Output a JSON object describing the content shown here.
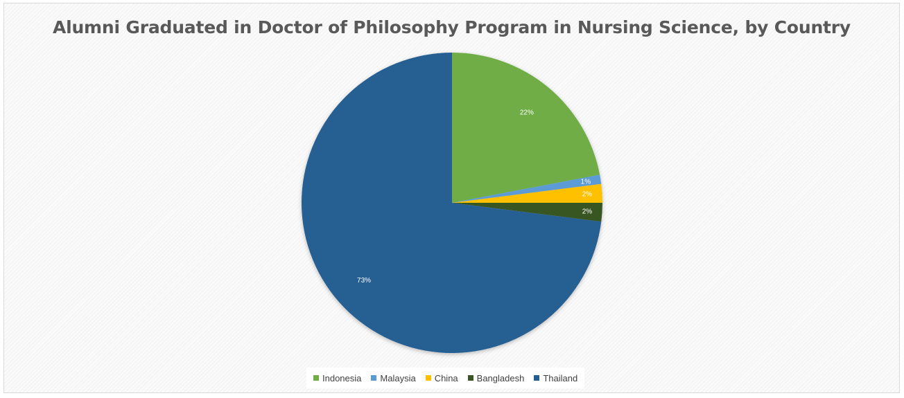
{
  "chart_data": {
    "type": "pie",
    "title": "Alumni Graduated in Doctor of Philosophy Program in Nursing Science, by Country",
    "categories": [
      "Indonesia",
      "Malaysia",
      "China",
      "Bangladesh",
      "Thailand"
    ],
    "values": [
      22,
      1,
      2,
      2,
      73
    ],
    "labels": [
      "22%",
      "1%",
      "2%",
      "2%",
      "73%"
    ],
    "colors": [
      "#70AD47",
      "#5B9BD5",
      "#FFC000",
      "#375623",
      "#255E91"
    ],
    "legend_position": "bottom"
  }
}
